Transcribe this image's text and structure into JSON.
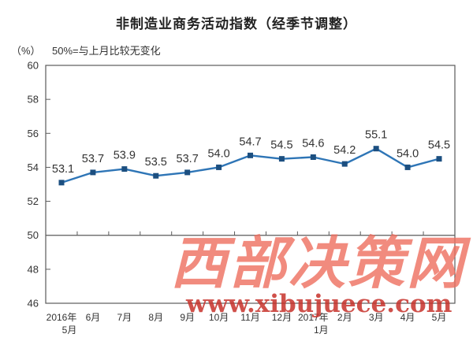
{
  "page": {
    "title": "非制造业商务活动指数（经季节调整）",
    "unit_label": "（%）",
    "reference_note": "50%=与上月比较无变化"
  },
  "watermark": {
    "site_name": "西部决策网",
    "site_url": "www.xibujuece.com",
    "name_color": "#ee6f5f",
    "url_color": "#c7322b"
  },
  "chart_data": {
    "type": "line",
    "title": "非制造业商务活动指数（经季节调整）",
    "xlabel": "",
    "ylabel": "（%）",
    "annotation": "50%=与上月比较无变化",
    "categories": [
      "2016年5月",
      "6月",
      "7月",
      "8月",
      "9月",
      "10月",
      "11月",
      "12月",
      "2017年1月",
      "2月",
      "3月",
      "4月",
      "5月"
    ],
    "x_tick_lines": [
      [
        "2016年",
        "5月"
      ],
      [
        "6月"
      ],
      [
        "7月"
      ],
      [
        "8月"
      ],
      [
        "9月"
      ],
      [
        "10月"
      ],
      [
        "11月"
      ],
      [
        "12月"
      ],
      [
        "2017年",
        "1月"
      ],
      [
        "2月"
      ],
      [
        "3月"
      ],
      [
        "4月"
      ],
      [
        "5月"
      ]
    ],
    "values": [
      53.1,
      53.7,
      53.9,
      53.5,
      53.7,
      54.0,
      54.7,
      54.5,
      54.6,
      54.2,
      55.1,
      54.0,
      54.5
    ],
    "ylim": [
      46,
      60
    ],
    "ytick_step": 2,
    "reference_line": 50,
    "grid": false,
    "legend": false,
    "marker_shape": "square",
    "line_color": "#2e75b6",
    "marker_color": "#1c4f80",
    "axis_color": "#5a5a5a",
    "label_color": "#2b2b2b"
  }
}
